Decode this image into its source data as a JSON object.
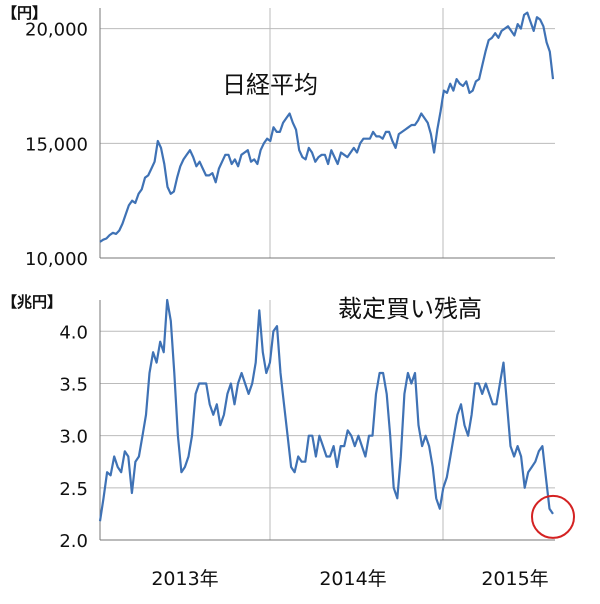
{
  "chart_data": [
    {
      "type": "line",
      "title": "日経平均",
      "unit_label": "【円】",
      "ylim": [
        10000,
        20900
      ],
      "yticks": [
        10000,
        15000,
        20000
      ],
      "ytick_labels": [
        "10,000",
        "15,000",
        "20,000"
      ],
      "grid": true,
      "color": "#3f72b5",
      "series": [
        {
          "values": [
            10700,
            10800,
            10850,
            11000,
            11100,
            11050,
            11200,
            11500,
            11900,
            12300,
            12500,
            12400,
            12800,
            13000,
            13500,
            13600,
            13900,
            14200,
            15100,
            14800,
            14100,
            13100,
            12800,
            12900,
            13500,
            14000,
            14300,
            14500,
            14700,
            14400,
            14000,
            14200,
            13900,
            13600,
            13600,
            13700,
            13300,
            13900,
            14200,
            14500,
            14500,
            14100,
            14300,
            14000,
            14500,
            14600,
            14700,
            14200,
            14300,
            14100,
            14700,
            15000,
            15200,
            15100,
            15700,
            15500,
            15500,
            15900,
            16100,
            16300,
            15900,
            15600,
            14700,
            14400,
            14300,
            14800,
            14600,
            14200,
            14400,
            14500,
            14500,
            14100,
            14700,
            14400,
            14100,
            14600,
            14500,
            14400,
            14600,
            14800,
            14600,
            15000,
            15200,
            15200,
            15200,
            15500,
            15300,
            15300,
            15200,
            15500,
            15500,
            15100,
            14800,
            15400,
            15500,
            15600,
            15700,
            15800,
            15800,
            16000,
            16300,
            16100,
            15900,
            15400,
            14600,
            15600,
            16400,
            17300,
            17200,
            17600,
            17300,
            17800,
            17600,
            17500,
            17700,
            17200,
            17300,
            17700,
            17800,
            18400,
            19000,
            19500,
            19600,
            19800,
            19600,
            19900,
            20000,
            20100,
            19900,
            19700,
            20200,
            20000,
            20600,
            20700,
            20300,
            19900,
            20500,
            20400,
            20100,
            19400,
            19000,
            17800
          ]
        }
      ]
    },
    {
      "type": "line",
      "title": "裁定買い残高",
      "unit_label": "【兆円】",
      "ylim": [
        2.0,
        4.3
      ],
      "yticks": [
        2.0,
        2.5,
        3.0,
        3.5,
        4.0
      ],
      "ytick_labels": [
        "2.0",
        "2.5",
        "3.0",
        "3.5",
        "4.0"
      ],
      "x_labels": [
        "2013年",
        "2014年",
        "2015年"
      ],
      "grid": true,
      "color": "#3f72b5",
      "highlight_color": "#d42222",
      "series": [
        {
          "values": [
            2.18,
            2.4,
            2.65,
            2.62,
            2.8,
            2.7,
            2.65,
            2.85,
            2.8,
            2.45,
            2.75,
            2.8,
            3.0,
            3.2,
            3.6,
            3.8,
            3.7,
            3.9,
            3.8,
            4.3,
            4.1,
            3.6,
            3.0,
            2.65,
            2.7,
            2.8,
            3.0,
            3.4,
            3.5,
            3.5,
            3.5,
            3.3,
            3.2,
            3.3,
            3.1,
            3.2,
            3.4,
            3.5,
            3.3,
            3.5,
            3.6,
            3.5,
            3.4,
            3.5,
            3.7,
            4.2,
            3.8,
            3.6,
            3.7,
            4.0,
            4.05,
            3.6,
            3.3,
            3.0,
            2.7,
            2.65,
            2.8,
            2.75,
            2.75,
            3.0,
            3.0,
            2.8,
            3.0,
            2.9,
            2.8,
            2.8,
            2.9,
            2.7,
            2.9,
            2.9,
            3.05,
            3.0,
            2.9,
            3.0,
            2.9,
            2.8,
            3.0,
            3.0,
            3.4,
            3.6,
            3.6,
            3.4,
            3.0,
            2.5,
            2.4,
            2.8,
            3.4,
            3.6,
            3.5,
            3.6,
            3.1,
            2.9,
            3.0,
            2.9,
            2.7,
            2.4,
            2.3,
            2.5,
            2.6,
            2.8,
            3.0,
            3.2,
            3.3,
            3.1,
            3.0,
            3.2,
            3.5,
            3.5,
            3.4,
            3.5,
            3.4,
            3.3,
            3.3,
            3.5,
            3.7,
            3.3,
            2.9,
            2.8,
            2.9,
            2.8,
            2.5,
            2.65,
            2.7,
            2.75,
            2.85,
            2.9,
            2.6,
            2.3,
            2.25
          ]
        }
      ]
    }
  ]
}
